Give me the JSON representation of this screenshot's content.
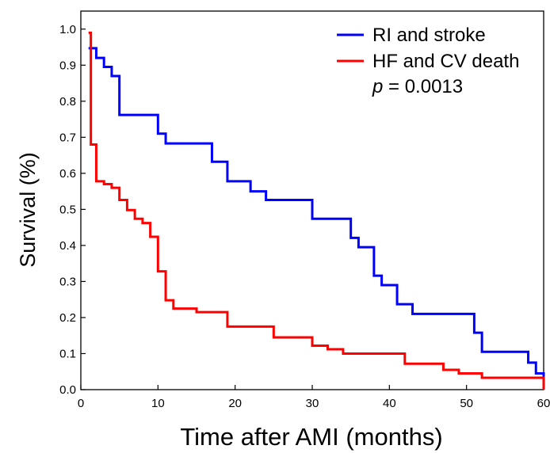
{
  "chart_data": {
    "type": "line",
    "title": "",
    "xlabel": "Time after AMI (months)",
    "ylabel": "Survival (%)",
    "xlim": [
      0,
      60
    ],
    "ylim": [
      0,
      1.05
    ],
    "x_ticks": [
      "0",
      "10",
      "20",
      "30",
      "40",
      "50",
      "60"
    ],
    "y_ticks": [
      "0.0",
      "0.1",
      "0.2",
      "0.3",
      "0.4",
      "0.5",
      "0.6",
      "0.7",
      "0.8",
      "0.9",
      "1.0"
    ],
    "grid": false,
    "legend_position": "top-right",
    "annotation": {
      "italic": "p",
      "rest": " = 0.0013"
    },
    "series": [
      {
        "name": "RI and stroke",
        "color": "#0000ff",
        "step": true,
        "x": [
          1,
          2,
          3,
          4,
          5,
          10,
          11,
          17,
          19,
          22,
          24,
          30,
          35,
          36,
          38,
          39,
          41,
          43,
          51,
          52,
          58,
          59,
          60
        ],
        "y": [
          0.947,
          0.92,
          0.895,
          0.87,
          0.762,
          0.71,
          0.683,
          0.632,
          0.578,
          0.55,
          0.526,
          0.474,
          0.421,
          0.395,
          0.316,
          0.29,
          0.237,
          0.21,
          0.158,
          0.105,
          0.075,
          0.045,
          0.0
        ]
      },
      {
        "name": "HF and CV death",
        "color": "#ff0000",
        "step": true,
        "x": [
          1,
          1.3,
          2,
          3,
          4,
          5,
          6,
          7,
          8,
          9,
          10,
          11,
          12,
          15,
          19,
          25,
          30,
          32,
          34,
          42,
          47,
          49,
          52,
          60
        ],
        "y": [
          0.99,
          0.68,
          0.578,
          0.57,
          0.56,
          0.526,
          0.498,
          0.474,
          0.462,
          0.424,
          0.328,
          0.248,
          0.225,
          0.215,
          0.175,
          0.145,
          0.122,
          0.112,
          0.1,
          0.072,
          0.055,
          0.045,
          0.033,
          0.0
        ]
      }
    ]
  }
}
